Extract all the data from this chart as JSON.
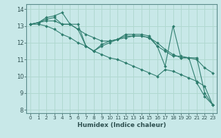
{
  "xlabel": "Humidex (Indice chaleur)",
  "background_color": "#c8e8e8",
  "grid_color": "#b0d8d0",
  "line_color": "#2e7d6e",
  "xlim": [
    -0.5,
    23.5
  ],
  "ylim": [
    7.8,
    14.3
  ],
  "yticks": [
    8,
    9,
    10,
    11,
    12,
    13,
    14
  ],
  "xticks": [
    0,
    1,
    2,
    3,
    4,
    5,
    6,
    7,
    8,
    9,
    10,
    11,
    12,
    13,
    14,
    15,
    16,
    17,
    18,
    19,
    20,
    21,
    22,
    23
  ],
  "lines": [
    [
      13.1,
      13.2,
      13.5,
      13.6,
      13.8,
      13.1,
      13.1,
      11.8,
      11.5,
      11.8,
      12.0,
      12.2,
      12.5,
      12.5,
      12.5,
      12.4,
      11.8,
      10.6,
      13.0,
      11.1,
      11.1,
      9.6,
      8.8,
      8.3
    ],
    [
      13.1,
      13.2,
      13.4,
      13.5,
      13.1,
      13.1,
      12.8,
      11.8,
      11.5,
      11.9,
      12.1,
      12.2,
      12.4,
      12.4,
      12.4,
      12.3,
      11.8,
      11.5,
      11.2,
      11.2,
      11.1,
      11.1,
      9.0,
      8.3
    ],
    [
      13.1,
      13.2,
      13.3,
      13.3,
      13.1,
      13.1,
      12.8,
      12.5,
      12.3,
      12.1,
      12.1,
      12.2,
      12.3,
      12.4,
      12.4,
      12.3,
      12.0,
      11.6,
      11.3,
      11.1,
      11.1,
      11.0,
      10.5,
      10.2
    ],
    [
      13.1,
      13.1,
      13.0,
      12.8,
      12.5,
      12.3,
      12.0,
      11.8,
      11.5,
      11.3,
      11.1,
      11.0,
      10.8,
      10.6,
      10.4,
      10.2,
      10.0,
      10.4,
      10.3,
      10.1,
      9.9,
      9.7,
      9.4,
      8.3
    ]
  ]
}
